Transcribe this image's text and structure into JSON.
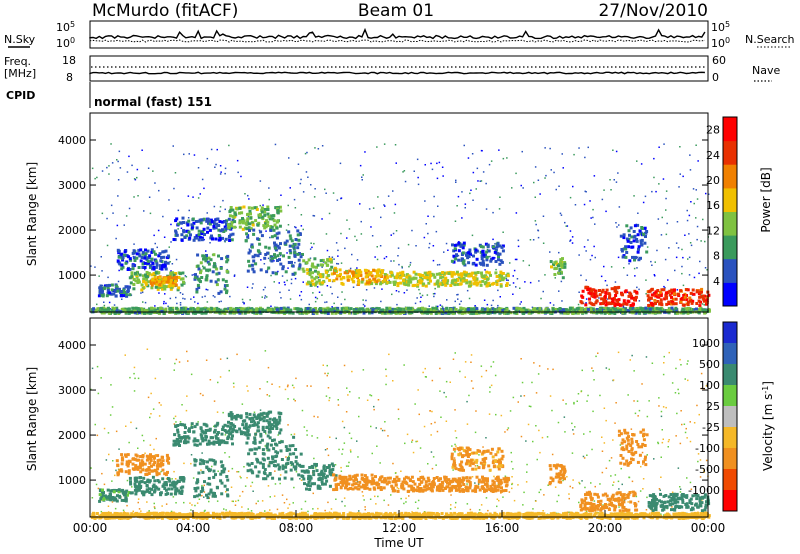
{
  "header": {
    "station": "McMurdo (fitACF)",
    "beam": "Beam 01",
    "date": "27/Nov/2010"
  },
  "top_panels": {
    "nsky_label": "N.Sky",
    "nsky_ticks": [
      "10^5",
      "10^0"
    ],
    "nsearch_label": "N.Search",
    "nsearch_ticks": [
      "10^5",
      "10^0"
    ],
    "freq_label_1": "Freq.",
    "freq_label_2": "[MHz]",
    "freq_ticks": [
      "18",
      "8"
    ],
    "nave_label": "Nave",
    "nave_ticks": [
      "60",
      "0"
    ],
    "cpid_label": "CPID",
    "cpid_value": "normal (fast) 151"
  },
  "time_axis": {
    "label": "Time UT",
    "ticks": [
      "00:00",
      "04:00",
      "08:00",
      "12:00",
      "16:00",
      "20:00",
      "00:00"
    ]
  },
  "colors": {
    "power_scale": [
      "#0000ff",
      "#2a52be",
      "#3a9a5c",
      "#7fc241",
      "#f0c000",
      "#f08000",
      "#e83000",
      "#ff0000"
    ],
    "velocity_scale": [
      "#1a2ad0",
      "#2f62b8",
      "#3a8a70",
      "#6acc40",
      "#bebebe",
      "#f5b828",
      "#f09020",
      "#f04a00",
      "#ff0000"
    ]
  },
  "chart_data": [
    {
      "type": "heatmap",
      "title": "",
      "quantity": "Power [dB]",
      "xlabel": "Time UT",
      "ylabel": "Slant Range [km]",
      "x_ticks": [
        "00:00",
        "04:00",
        "08:00",
        "12:00",
        "16:00",
        "20:00",
        "00:00"
      ],
      "xlim_hours": [
        0,
        24
      ],
      "ylim_km": [
        180,
        4600
      ],
      "y_ticks": [
        1000,
        2000,
        3000,
        4000
      ],
      "colorbar_ticks": [
        4,
        8,
        12,
        16,
        20,
        24,
        28
      ],
      "colorbar_range": [
        0,
        30
      ],
      "grid": false,
      "echo_bands": [
        {
          "t0": 0.3,
          "t1": 1.5,
          "r0": 560,
          "r1": 820,
          "value": 7
        },
        {
          "t0": 1.0,
          "t1": 3.0,
          "r0": 1150,
          "r1": 1600,
          "value": 6
        },
        {
          "t0": 1.5,
          "t1": 3.6,
          "r0": 700,
          "r1": 1100,
          "value": 14
        },
        {
          "t0": 2.3,
          "t1": 3.3,
          "r0": 800,
          "r1": 1000,
          "value": 20
        },
        {
          "t0": 3.2,
          "t1": 5.5,
          "r0": 1800,
          "r1": 2300,
          "value": 6
        },
        {
          "t0": 4.0,
          "t1": 5.3,
          "r0": 620,
          "r1": 1500,
          "value": 9
        },
        {
          "t0": 5.3,
          "t1": 7.4,
          "r0": 2050,
          "r1": 2550,
          "value": 13
        },
        {
          "t0": 6.0,
          "t1": 8.2,
          "r0": 1050,
          "r1": 2050,
          "value": 8
        },
        {
          "t0": 8.2,
          "t1": 9.5,
          "r0": 800,
          "r1": 1400,
          "value": 15
        },
        {
          "t0": 9.4,
          "t1": 11.5,
          "r0": 820,
          "r1": 1150,
          "value": 19
        },
        {
          "t0": 11.5,
          "t1": 16.2,
          "r0": 780,
          "r1": 1100,
          "value": 16
        },
        {
          "t0": 14.0,
          "t1": 16.0,
          "r0": 1250,
          "r1": 1750,
          "value": 6
        },
        {
          "t0": 17.8,
          "t1": 18.4,
          "r0": 950,
          "r1": 1400,
          "value": 13
        },
        {
          "t0": 19.0,
          "t1": 21.2,
          "r0": 350,
          "r1": 770,
          "value": 28
        },
        {
          "t0": 21.6,
          "t1": 24.0,
          "r0": 350,
          "r1": 720,
          "value": 27
        },
        {
          "t0": 20.5,
          "t1": 21.6,
          "r0": 1350,
          "r1": 2150,
          "value": 6
        },
        {
          "t0": 0.0,
          "t1": 24.0,
          "r0": 180,
          "r1": 300,
          "value": 11
        }
      ]
    },
    {
      "type": "heatmap",
      "title": "",
      "quantity": "Velocity [m s^-1]",
      "xlabel": "Time UT",
      "ylabel": "Slant Range [km]",
      "x_ticks": [
        "00:00",
        "04:00",
        "08:00",
        "12:00",
        "16:00",
        "20:00",
        "00:00"
      ],
      "xlim_hours": [
        0,
        24
      ],
      "ylim_km": [
        180,
        4600
      ],
      "y_ticks": [
        1000,
        2000,
        3000,
        4000
      ],
      "colorbar_ticks": [
        "1000",
        "500",
        "100",
        "25",
        "-25",
        "-100",
        "-500",
        "-1000"
      ],
      "grid": false,
      "echo_bands": [
        {
          "t0": 0.3,
          "t1": 1.5,
          "r0": 560,
          "r1": 820,
          "value": 120
        },
        {
          "t0": 1.0,
          "t1": 3.0,
          "r0": 1150,
          "r1": 1600,
          "value": -150
        },
        {
          "t0": 1.5,
          "t1": 3.6,
          "r0": 700,
          "r1": 1100,
          "value": 180
        },
        {
          "t0": 3.2,
          "t1": 5.5,
          "r0": 1800,
          "r1": 2300,
          "value": 150
        },
        {
          "t0": 4.0,
          "t1": 5.3,
          "r0": 620,
          "r1": 1500,
          "value": 200
        },
        {
          "t0": 5.3,
          "t1": 7.4,
          "r0": 2050,
          "r1": 2550,
          "value": 250
        },
        {
          "t0": 6.0,
          "t1": 8.2,
          "r0": 1050,
          "r1": 2050,
          "value": 220
        },
        {
          "t0": 8.2,
          "t1": 9.5,
          "r0": 800,
          "r1": 1400,
          "value": 300
        },
        {
          "t0": 9.4,
          "t1": 11.5,
          "r0": 820,
          "r1": 1150,
          "value": -200
        },
        {
          "t0": 11.5,
          "t1": 16.2,
          "r0": 780,
          "r1": 1100,
          "value": -250
        },
        {
          "t0": 14.0,
          "t1": 16.0,
          "r0": 1250,
          "r1": 1750,
          "value": -120
        },
        {
          "t0": 17.8,
          "t1": 18.4,
          "r0": 950,
          "r1": 1400,
          "value": -150
        },
        {
          "t0": 19.0,
          "t1": 21.2,
          "r0": 350,
          "r1": 770,
          "value": -300
        },
        {
          "t0": 21.6,
          "t1": 24.0,
          "r0": 350,
          "r1": 720,
          "value": 150
        },
        {
          "t0": 20.5,
          "t1": 21.6,
          "r0": 1350,
          "r1": 2150,
          "value": -250
        },
        {
          "t0": 0.0,
          "t1": 24.0,
          "r0": 180,
          "r1": 300,
          "value": -50
        }
      ]
    }
  ]
}
